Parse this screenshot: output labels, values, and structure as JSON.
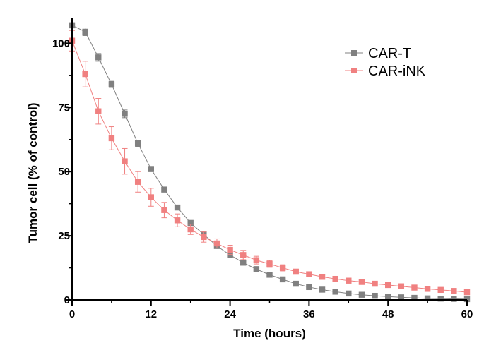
{
  "chart_data": {
    "type": "scatter",
    "xlabel": "Time (hours)",
    "ylabel": "Tumor cell (% of control)",
    "xlim": [
      0,
      60
    ],
    "ylim": [
      0,
      110
    ],
    "xticks": [
      "0",
      "12",
      "24",
      "36",
      "48",
      "60"
    ],
    "yticks": [
      "0",
      "25",
      "50",
      "75",
      "100"
    ],
    "legend_position": "top-right",
    "grid": false,
    "x": [
      0,
      2,
      4,
      6,
      8,
      10,
      12,
      14,
      16,
      18,
      20,
      22,
      24,
      26,
      28,
      30,
      32,
      34,
      36,
      38,
      40,
      42,
      44,
      46,
      48,
      50,
      52,
      54,
      56,
      58,
      60
    ],
    "series": [
      {
        "name": "CAR-T",
        "color": "#808080",
        "marker": "square",
        "values": [
          107,
          104.5,
          94.5,
          84,
          72.5,
          61,
          51,
          43,
          36,
          30,
          25.5,
          21,
          17.5,
          14.5,
          12,
          9.8,
          8,
          6.3,
          5,
          4,
          3.2,
          2.5,
          2,
          1.6,
          1.3,
          1,
          0.8,
          0.6,
          0.5,
          0.4,
          0.3
        ],
        "errors": [
          1.0,
          1.5,
          1.5,
          1.2,
          1.5,
          1.2,
          1.0,
          0.8,
          0.8,
          0.8,
          0.8,
          0.8,
          0.7,
          0.6,
          0.5,
          0.5,
          0.4,
          0.4,
          0.3,
          0.3,
          0.3,
          0.3,
          0.2,
          0.2,
          0.2,
          0.2,
          0.2,
          0.2,
          0.2,
          0.2,
          0.2
        ]
      },
      {
        "name": "CAR-iNK",
        "color": "#f08080",
        "marker": "square",
        "values": [
          101,
          88,
          73.5,
          63,
          54,
          46,
          40,
          35,
          31,
          27.5,
          24.5,
          22,
          19.5,
          17.5,
          15.5,
          14,
          12.5,
          11,
          10,
          9,
          8.2,
          7.5,
          7,
          6.3,
          5.8,
          5.3,
          4.8,
          4.3,
          3.9,
          3.5,
          3.0
        ],
        "errors": [
          4.0,
          5.0,
          5.0,
          4.5,
          5.0,
          4.0,
          3.5,
          3.0,
          2.5,
          2.0,
          2.0,
          1.8,
          1.8,
          1.8,
          1.5,
          1.3,
          1.2,
          1.0,
          1.0,
          0.8,
          0.8,
          0.7,
          0.7,
          0.6,
          0.6,
          0.6,
          0.5,
          0.5,
          0.5,
          0.5,
          0.5
        ]
      }
    ]
  }
}
